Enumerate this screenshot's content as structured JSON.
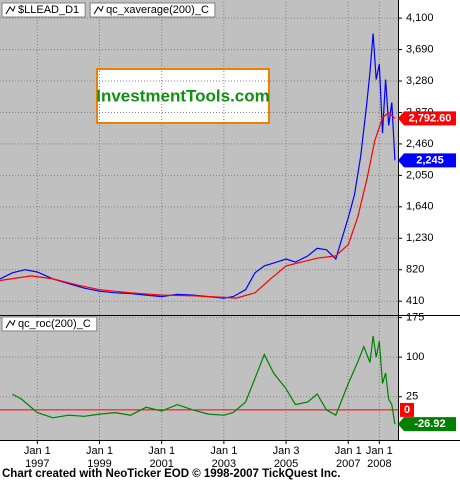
{
  "chart_data": [
    {
      "type": "line",
      "legend": [
        "$LLEAD_D1",
        "qc_xaverage(200)_C"
      ],
      "watermark": "InvestmentTools.com",
      "xlim": [
        1995.8,
        2008.6
      ],
      "ylim": [
        230,
        4310
      ],
      "yticks": [
        {
          "value": 410,
          "label": "410"
        },
        {
          "value": 820,
          "label": "820"
        },
        {
          "value": 1230,
          "label": "1,230"
        },
        {
          "value": 1640,
          "label": "1,640"
        },
        {
          "value": 2050,
          "label": "2,050"
        },
        {
          "value": 2460,
          "label": "2,460"
        },
        {
          "value": 2870,
          "label": "2,870"
        },
        {
          "value": 3280,
          "label": "3,280"
        },
        {
          "value": 3690,
          "label": "3,690"
        },
        {
          "value": 4100,
          "label": "4,100"
        }
      ],
      "grid": true,
      "series": [
        {
          "name": "$LLEAD_D1",
          "color": "#0000ff",
          "x": [
            1995.8,
            1996.2,
            1996.6,
            1997,
            1997.5,
            1998,
            1998.5,
            1999,
            1999.5,
            2000,
            2000.5,
            2001,
            2001.5,
            2002,
            2002.5,
            2003,
            2003.3,
            2003.7,
            2004,
            2004.3,
            2004.7,
            2005,
            2005.3,
            2005.7,
            2006,
            2006.3,
            2006.6,
            2006.8,
            2007,
            2007.2,
            2007.4,
            2007.6,
            2007.7,
            2007.8,
            2007.9,
            2008,
            2008.1,
            2008.2,
            2008.3,
            2008.4,
            2008.5
          ],
          "values": [
            700,
            780,
            820,
            790,
            700,
            640,
            580,
            540,
            520,
            510,
            490,
            470,
            500,
            490,
            470,
            450,
            470,
            560,
            780,
            870,
            920,
            960,
            920,
            1000,
            1100,
            1080,
            960,
            1230,
            1500,
            1800,
            2300,
            3000,
            3400,
            3900,
            3300,
            3500,
            2600,
            3300,
            2700,
            3000,
            2245
          ],
          "value_labels": [
            null,
            null,
            null,
            null,
            null,
            null,
            null,
            null,
            null,
            null,
            null,
            null,
            null,
            null,
            null,
            null,
            null,
            null,
            null,
            null,
            null,
            null,
            null,
            null,
            null,
            null,
            null,
            null,
            null,
            null,
            null,
            null,
            null,
            null,
            null,
            null,
            null,
            null,
            null,
            null,
            "2,245"
          ]
        },
        {
          "name": "qc_xaverage(200)_C",
          "color": "#ff0000",
          "x": [
            1995.8,
            1996.8,
            1997.5,
            1998.3,
            1999,
            2000,
            2001,
            2002,
            2003,
            2003.4,
            2004,
            2004.5,
            2005,
            2005.5,
            2006,
            2006.6,
            2007,
            2007.3,
            2007.6,
            2007.85,
            2008.1,
            2008.3,
            2008.5
          ],
          "values": [
            680,
            740,
            700,
            620,
            560,
            520,
            490,
            480,
            460,
            450,
            520,
            700,
            870,
            920,
            970,
            1000,
            1150,
            1500,
            2000,
            2500,
            2800,
            2870,
            2792.6
          ],
          "value_labels": [
            null,
            null,
            null,
            null,
            null,
            null,
            null,
            null,
            null,
            null,
            null,
            null,
            null,
            null,
            null,
            null,
            null,
            null,
            null,
            null,
            null,
            null,
            "2,792.60"
          ]
        }
      ]
    },
    {
      "type": "line",
      "legend": [
        "qc_roc(200)_C"
      ],
      "xlim": [
        1995.8,
        2008.6
      ],
      "ylim": [
        -57,
        178
      ],
      "yticks": [
        25,
        100,
        175
      ],
      "grid": true,
      "ref_line": 0,
      "xticks": [
        {
          "value": 1997,
          "label": "Jan 1"
        },
        {
          "value": 1999,
          "label": "Jan 1"
        },
        {
          "value": 2001,
          "label": "Jan 1"
        },
        {
          "value": 2003,
          "label": "Jan 1"
        },
        {
          "value": 2005,
          "label": "Jan 3"
        },
        {
          "value": 2007,
          "label": "Jan 1"
        },
        {
          "value": 2008,
          "label": "Jan 1"
        }
      ],
      "xtick_years": [
        "1997",
        "1999",
        "2001",
        "2003",
        "2005",
        "2007",
        "2008"
      ],
      "series": [
        {
          "name": "qc_roc(200)_C",
          "color": "#008000",
          "x": [
            1996.2,
            1996.5,
            1997,
            1997.5,
            1998,
            1998.5,
            1999,
            1999.5,
            2000,
            2000.5,
            2001,
            2001.5,
            2002,
            2002.5,
            2003,
            2003.3,
            2003.7,
            2004,
            2004.3,
            2004.6,
            2005,
            2005.3,
            2005.7,
            2006,
            2006.3,
            2006.6,
            2006.8,
            2007,
            2007.3,
            2007.5,
            2007.7,
            2007.8,
            2007.9,
            2008,
            2008.1,
            2008.2,
            2008.3,
            2008.4,
            2008.5
          ],
          "values": [
            30,
            20,
            -5,
            -15,
            -10,
            -12,
            -8,
            -5,
            -10,
            5,
            -2,
            10,
            0,
            -8,
            -10,
            -5,
            15,
            60,
            105,
            70,
            40,
            10,
            15,
            30,
            0,
            -10,
            20,
            50,
            90,
            120,
            90,
            140,
            100,
            130,
            50,
            70,
            20,
            10,
            -26.92
          ],
          "value_labels": [
            null,
            null,
            null,
            null,
            null,
            null,
            null,
            null,
            null,
            null,
            null,
            null,
            null,
            null,
            null,
            null,
            null,
            null,
            null,
            null,
            null,
            null,
            null,
            null,
            null,
            null,
            null,
            null,
            null,
            null,
            null,
            null,
            null,
            null,
            null,
            null,
            null,
            null,
            "-26.92"
          ]
        }
      ]
    }
  ],
  "footer": "Chart created with NeoTicker EOD © 1998-2007 TickQuest Inc."
}
